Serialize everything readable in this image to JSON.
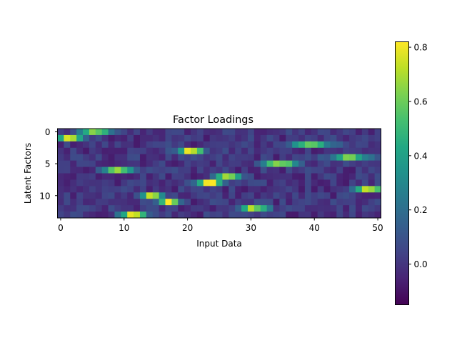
{
  "chart_data": {
    "type": "heatmap",
    "title": "Factor Loadings",
    "xlabel": "Input Data",
    "ylabel": "Latent Factors",
    "x_ticks": [
      0,
      10,
      20,
      30,
      40,
      50
    ],
    "y_ticks": [
      0,
      5,
      10
    ],
    "n_cols": 51,
    "n_rows": 14,
    "colormap": "viridis",
    "vmin": -0.15,
    "vmax": 0.82,
    "colorbar_ticks": [
      0.0,
      0.2,
      0.4,
      0.6,
      0.8
    ],
    "colorbar_tick_labels": [
      "0.0",
      "0.2",
      "0.4",
      "0.6",
      "0.8"
    ],
    "baseline": 0.0,
    "peaks": [
      {
        "row": 0,
        "center": 5.5,
        "amp": 0.65,
        "width": 2.2
      },
      {
        "row": 1,
        "center": 1.5,
        "amp": 0.78,
        "width": 2.0
      },
      {
        "row": 2,
        "center": 39.5,
        "amp": 0.62,
        "width": 3.0
      },
      {
        "row": 3,
        "center": 20.5,
        "amp": 0.78,
        "width": 2.0
      },
      {
        "row": 4,
        "center": 45.5,
        "amp": 0.58,
        "width": 3.0
      },
      {
        "row": 5,
        "center": 34.5,
        "amp": 0.68,
        "width": 2.5
      },
      {
        "row": 6,
        "center": 9.0,
        "amp": 0.75,
        "width": 2.0
      },
      {
        "row": 7,
        "center": 26.5,
        "amp": 0.7,
        "width": 2.0
      },
      {
        "row": 8,
        "center": 23.5,
        "amp": 0.8,
        "width": 2.0
      },
      {
        "row": 9,
        "center": 48.5,
        "amp": 0.68,
        "width": 2.5
      },
      {
        "row": 10,
        "center": 14.5,
        "amp": 0.8,
        "width": 1.6
      },
      {
        "row": 11,
        "center": 17.0,
        "amp": 0.8,
        "width": 1.6
      },
      {
        "row": 12,
        "center": 30.5,
        "amp": 0.68,
        "width": 2.2
      },
      {
        "row": 13,
        "center": 11.5,
        "amp": 0.8,
        "width": 2.0
      }
    ]
  }
}
